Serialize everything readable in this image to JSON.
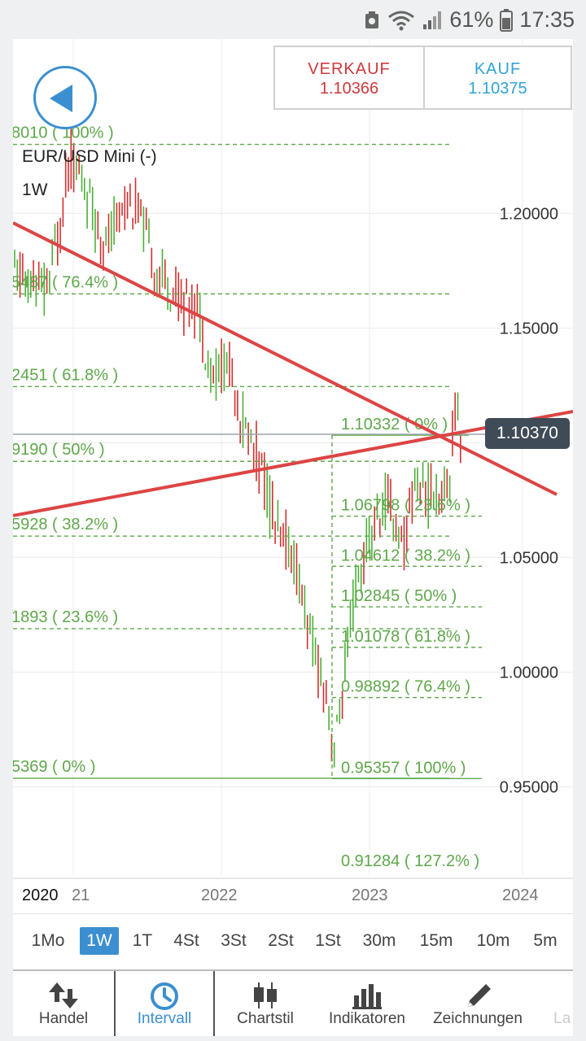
{
  "status": {
    "battery": "61%",
    "time": "17:35"
  },
  "quote": {
    "sell_label": "VERKAUF",
    "sell_price": "1.10366",
    "buy_label": "KAUF",
    "buy_price": "1.10375"
  },
  "instrument": "EUR/USD Mini (-)",
  "timeframe": "1W",
  "current_price_tag": "1.10370",
  "colors": {
    "accent": "#3b8fd0",
    "bull": "#4caf3a",
    "bear": "#d32f2f",
    "fib": "#5ea84a",
    "trend": "#dd4444"
  },
  "chart_data": {
    "type": "candlestick",
    "ylim": [
      0.895,
      1.245
    ],
    "y_ticks": [
      "1.20000",
      "1.15000",
      "1.05000",
      "1.00000",
      "0.95000"
    ],
    "y_tick_values": [
      1.2,
      1.15,
      1.05,
      1.0,
      0.95
    ],
    "x_ticks": [
      "2020",
      "21",
      "2022",
      "2023",
      "2024"
    ],
    "current_price": 1.1037,
    "fib_left": [
      {
        "label": "8010 ( 100% )",
        "value": 1.2301
      },
      {
        "label": "5487 ( 76.4% )",
        "value": 1.1649
      },
      {
        "label": "2451 ( 61.8% )",
        "value": 1.1245
      },
      {
        "label": "9190 ( 50% )",
        "value": 1.0919
      },
      {
        "label": "5928 ( 38.2% )",
        "value": 1.0593
      },
      {
        "label": "1893 ( 23.6% )",
        "value": 1.0189
      },
      {
        "label": "5369 ( 0% )",
        "value": 0.9537
      }
    ],
    "fib_right": [
      {
        "label": "1.10332 ( 0% )",
        "value": 1.10332
      },
      {
        "label": "1.06798 ( 23.6% )",
        "value": 1.06798
      },
      {
        "label": "1.04612 ( 38.2% )",
        "value": 1.04612
      },
      {
        "label": "1.02845 ( 50% )",
        "value": 1.02845
      },
      {
        "label": "1.01078 ( 61.8% )",
        "value": 1.01078
      },
      {
        "label": "0.98892 ( 76.4% )",
        "value": 0.98892
      },
      {
        "label": "0.95357 ( 100% )",
        "value": 0.95357
      },
      {
        "label": "0.91284 ( 127.2% )",
        "value": 0.91284
      }
    ]
  },
  "intervals": [
    "1Mo",
    "1W",
    "1T",
    "4St",
    "3St",
    "2St",
    "1St",
    "30m",
    "15m",
    "10m",
    "5m"
  ],
  "active_interval": "1W",
  "nav": {
    "handel": "Handel",
    "intervall": "Intervall",
    "chartstil": "Chartstil",
    "indikatoren": "Indikatoren",
    "zeichnungen": "Zeichnungen",
    "more": "La"
  }
}
